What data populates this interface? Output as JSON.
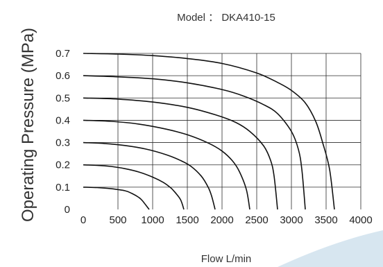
{
  "chart_data": {
    "type": "line",
    "title": "Model ： DKA410-15",
    "xlabel": "Flow L/min",
    "ylabel": "Operating Pressure (MPa)",
    "xlim": [
      0,
      4000
    ],
    "ylim": [
      0,
      0.7
    ],
    "x_ticks": [
      "0",
      "500",
      "1000",
      "1500",
      "2000",
      "2500",
      "3000",
      "3500",
      "4000"
    ],
    "y_ticks": [
      "0",
      "0.1",
      "0.2",
      "0.3",
      "0.4",
      "0.5",
      "0.6",
      "0.7"
    ],
    "grid": true,
    "legend": "none",
    "series": [
      {
        "x": [
          0,
          200,
          400,
          600,
          700,
          800,
          850,
          950
        ],
        "y": [
          0.1,
          0.098,
          0.093,
          0.084,
          0.072,
          0.054,
          0.04,
          0.0
        ]
      },
      {
        "x": [
          0,
          200,
          400,
          600,
          800,
          1000,
          1150,
          1250,
          1300,
          1400,
          1450
        ],
        "y": [
          0.2,
          0.198,
          0.193,
          0.183,
          0.168,
          0.145,
          0.122,
          0.1,
          0.085,
          0.045,
          0.0
        ]
      },
      {
        "x": [
          0,
          300,
          600,
          900,
          1200,
          1400,
          1550,
          1700,
          1800,
          1850,
          1900
        ],
        "y": [
          0.3,
          0.296,
          0.287,
          0.271,
          0.245,
          0.22,
          0.194,
          0.15,
          0.1,
          0.06,
          0.0
        ]
      },
      {
        "x": [
          0,
          400,
          800,
          1200,
          1500,
          1800,
          2000,
          2150,
          2250,
          2350,
          2400
        ],
        "y": [
          0.4,
          0.395,
          0.383,
          0.36,
          0.335,
          0.298,
          0.262,
          0.218,
          0.17,
          0.09,
          0.0
        ]
      },
      {
        "x": [
          0,
          500,
          1000,
          1500,
          1900,
          2200,
          2400,
          2600,
          2700,
          2750,
          2800
        ],
        "y": [
          0.5,
          0.495,
          0.482,
          0.458,
          0.425,
          0.39,
          0.35,
          0.285,
          0.22,
          0.15,
          0.0
        ]
      },
      {
        "x": [
          0,
          500,
          1000,
          1500,
          2000,
          2300,
          2600,
          2800,
          3000,
          3100,
          3150,
          3200
        ],
        "y": [
          0.6,
          0.595,
          0.586,
          0.568,
          0.538,
          0.51,
          0.47,
          0.43,
          0.35,
          0.27,
          0.18,
          0.0
        ]
      },
      {
        "x": [
          0,
          500,
          1000,
          1500,
          2000,
          2500,
          2800,
          3000,
          3200,
          3350,
          3450,
          3550,
          3620
        ],
        "y": [
          0.7,
          0.697,
          0.69,
          0.677,
          0.655,
          0.612,
          0.57,
          0.534,
          0.478,
          0.395,
          0.3,
          0.18,
          0.0
        ]
      }
    ]
  }
}
